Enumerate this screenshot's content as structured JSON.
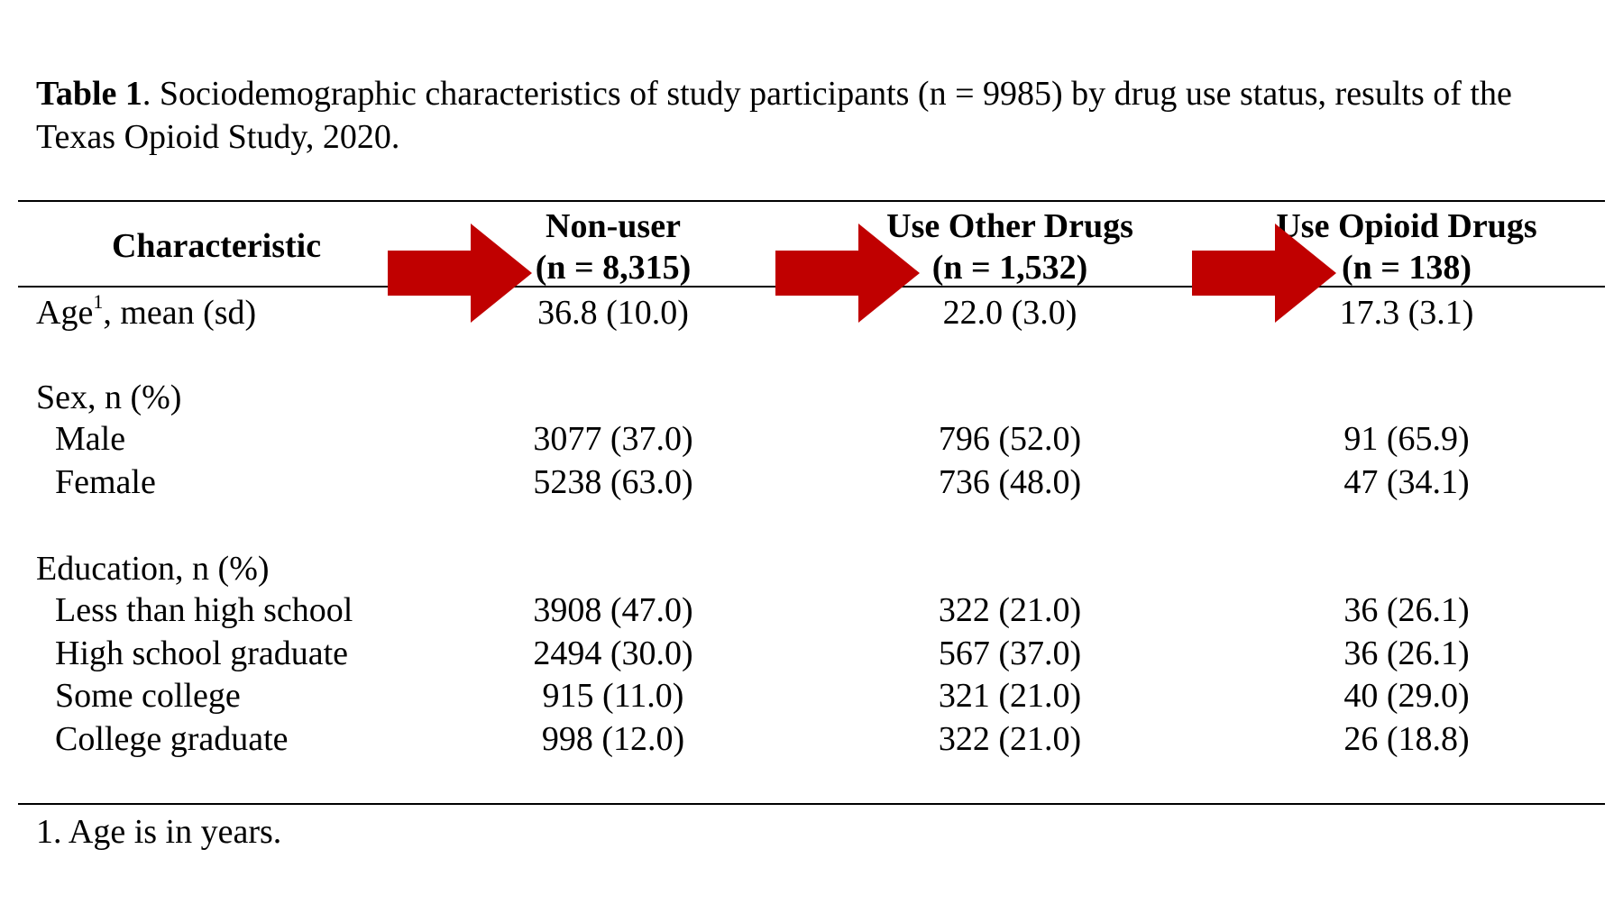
{
  "caption": {
    "label": "Table 1",
    "text": ". Sociodemographic characteristics of study participants (n = 9985) by drug use status, results of the Texas Opioid Study, 2020."
  },
  "header": {
    "characteristic": "Characteristic",
    "columns": [
      {
        "name": "Non-user",
        "n": "(n = 8,315)"
      },
      {
        "name": "Use Other Drugs",
        "n": "(n = 1,532)"
      },
      {
        "name": "Use Opioid Drugs",
        "n": "(n = 138)"
      }
    ]
  },
  "rows": {
    "age": {
      "label_pre": "Age",
      "label_sup": "1",
      "label_post": ", mean (sd)",
      "values": [
        "36.8 (10.0)",
        "22.0 (3.0)",
        "17.3 (3.1)"
      ]
    },
    "sex_heading": "Sex, n (%)",
    "male": {
      "label": "Male",
      "values": [
        "3077 (37.0)",
        "796 (52.0)",
        "91 (65.9)"
      ]
    },
    "female": {
      "label": "Female",
      "values": [
        "5238 (63.0)",
        "736 (48.0)",
        "47 (34.1)"
      ]
    },
    "education_heading": "Education, n (%)",
    "less_hs": {
      "label": "Less than high school",
      "values": [
        "3908 (47.0)",
        "322 (21.0)",
        "36 (26.1)"
      ]
    },
    "hs_grad": {
      "label": "High school graduate",
      "values": [
        "2494 (30.0)",
        "567 (37.0)",
        "36 (26.1)"
      ]
    },
    "some_college": {
      "label": "Some college",
      "values": [
        "915 (11.0)",
        "321 (21.0)",
        "40 (29.0)"
      ]
    },
    "college_grad": {
      "label": "College graduate",
      "values": [
        "998 (12.0)",
        "322 (21.0)",
        "26 (18.8)"
      ]
    }
  },
  "footnote": "1. Age is in years.",
  "colors": {
    "arrow": "#C00000",
    "text": "#000000",
    "background": "#FFFFFF"
  },
  "icons": [
    "right-arrow-icon",
    "right-arrow-icon",
    "right-arrow-icon"
  ]
}
